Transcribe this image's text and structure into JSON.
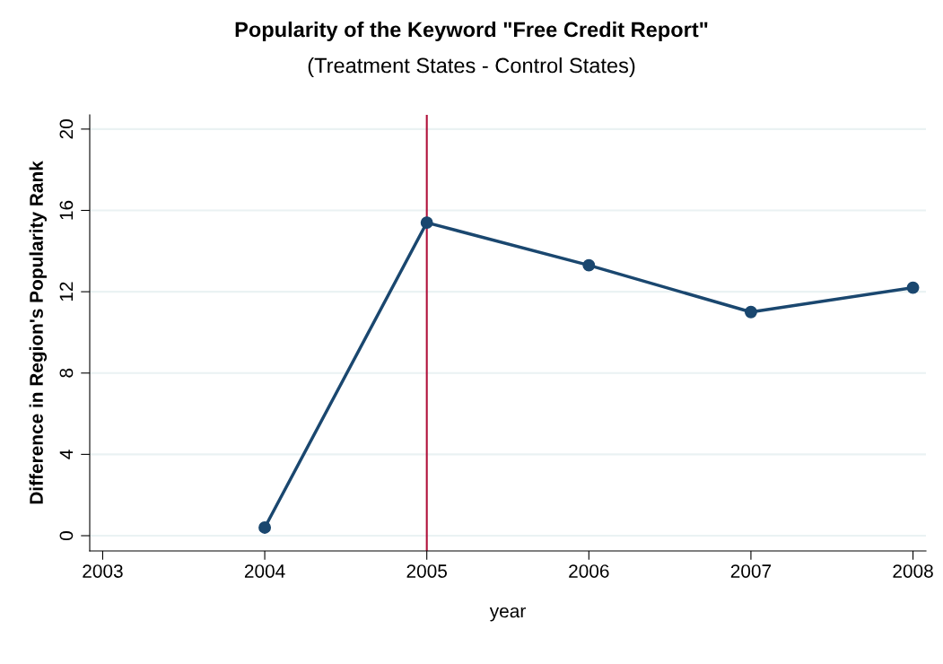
{
  "chart_data": {
    "type": "line",
    "title": "Popularity of the Keyword \"Free Credit Report\"",
    "subtitle": "(Treatment States - Control States)",
    "xlabel": "year",
    "ylabel": "Difference in Region's Popularity Rank",
    "x": [
      2004,
      2005,
      2006,
      2007,
      2008
    ],
    "series": [
      {
        "color": "#1a476f",
        "values": [
          0.4,
          15.4,
          13.3,
          11.0,
          12.2
        ]
      }
    ],
    "xlim": [
      2002.92,
      2008.08
    ],
    "xticks": [
      2003,
      2004,
      2005,
      2006,
      2007,
      2008
    ],
    "ylim": [
      -0.75,
      20.7
    ],
    "yticks": [
      0,
      4,
      8,
      12,
      16,
      20
    ],
    "ref_lines": [
      {
        "axis": "x",
        "value": 2005,
        "color": "#b0103a"
      }
    ],
    "grid": "y",
    "marker": "circle",
    "line_style": "solid"
  }
}
